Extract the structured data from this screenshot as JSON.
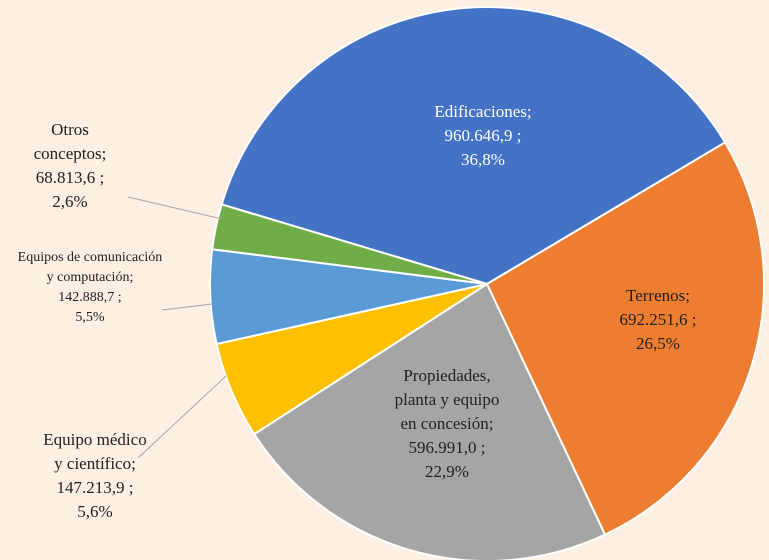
{
  "chart_data": {
    "type": "pie",
    "categories": [
      "Edificaciones",
      "Terrenos",
      "Propiedades, planta y equipo en concesión",
      "Equipo médico y científico",
      "Equipos de comunicación y computación",
      "Otros conceptos"
    ],
    "values": [
      960646.9,
      692251.6,
      596991.0,
      147213.9,
      142888.7,
      68813.6
    ],
    "value_labels": [
      "960.646,9",
      "692.251,6",
      "596.991,0",
      "147.213,9",
      "142.888,7",
      "68.813,6"
    ],
    "percentages": [
      36.8,
      26.5,
      22.9,
      5.6,
      5.5,
      2.6
    ],
    "percent_labels": [
      "36,8%",
      "26,5%",
      "22,9%",
      "5,6%",
      "5,5%",
      "2,6%"
    ],
    "label_separator": ";",
    "colors": [
      "#4472c4",
      "#ed7d31",
      "#a5a5a5",
      "#ffc000",
      "#5b9bd5",
      "#70ad47"
    ]
  }
}
